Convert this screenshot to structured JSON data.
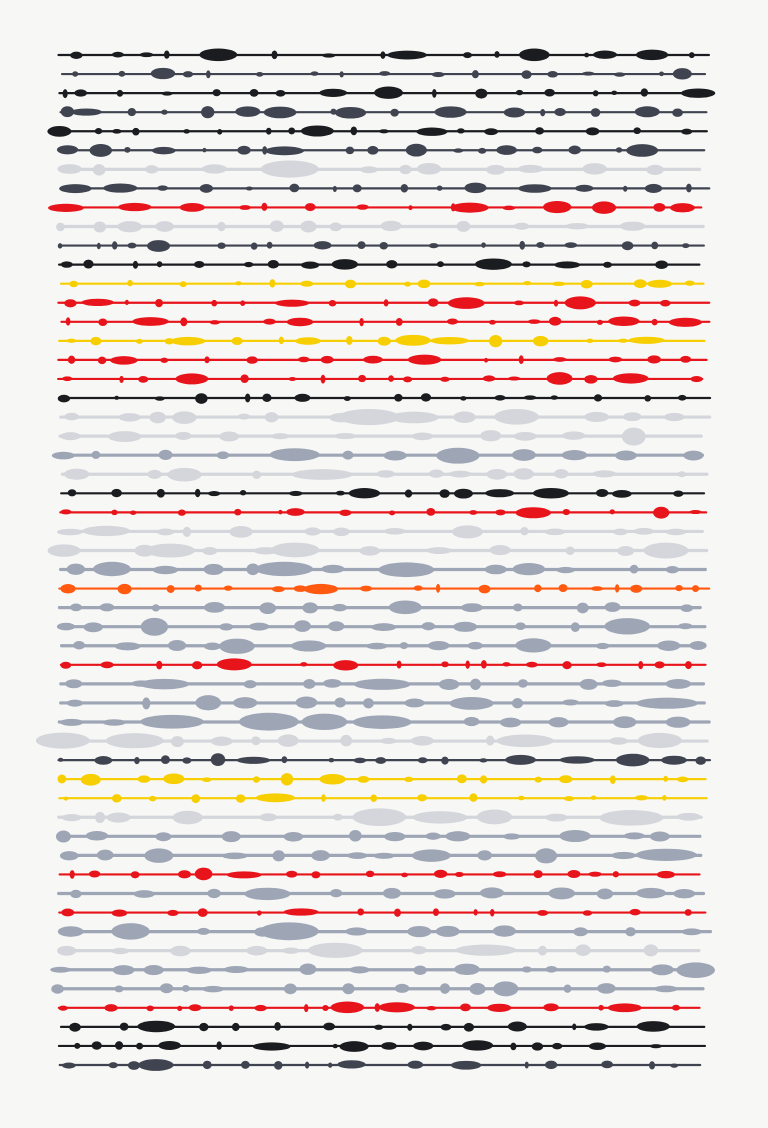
{
  "artwork": {
    "palette": {
      "black": "#1b1c20",
      "dark_gray": "#3f4450",
      "gray_blue": "#8f99ab",
      "light_gray": "#c9ccd2",
      "red": "#e8141b",
      "orange": "#ff5a10",
      "yellow": "#f7cf00",
      "paper": "#f7f7f6"
    },
    "lines": [
      "black",
      "dark_gray",
      "black",
      "dark_gray",
      "black",
      "dark_gray",
      "light_gray",
      "dark_gray",
      "red",
      "light_gray",
      "dark_gray",
      "black",
      "yellow",
      "red",
      "red",
      "yellow",
      "red",
      "red",
      "black",
      "light_gray",
      "light_gray",
      "gray_blue",
      "light_gray",
      "black",
      "red",
      "light_gray",
      "light_gray",
      "gray_blue",
      "orange",
      "gray_blue",
      "gray_blue",
      "gray_blue",
      "red",
      "gray_blue",
      "gray_blue",
      "gray_blue",
      "light_gray",
      "dark_gray",
      "yellow",
      "yellow",
      "light_gray",
      "gray_blue",
      "gray_blue",
      "red",
      "gray_blue",
      "red",
      "gray_blue",
      "light_gray",
      "gray_blue",
      "gray_blue",
      "red",
      "black",
      "black",
      "dark_gray"
    ]
  }
}
